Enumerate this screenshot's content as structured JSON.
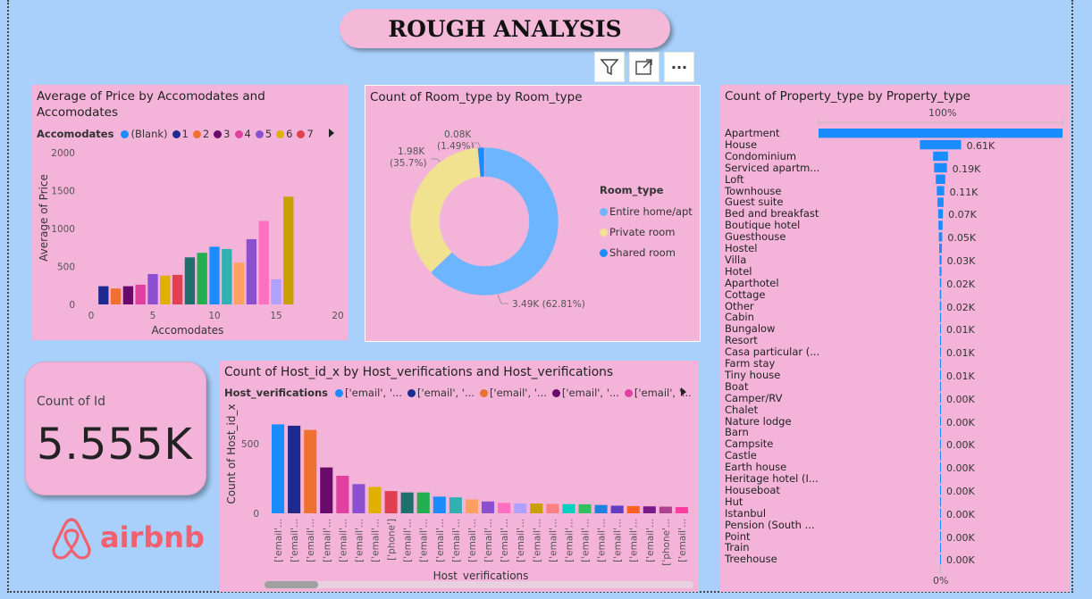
{
  "title": "ROUGH ANALYSIS",
  "toolbar": {
    "icons": [
      "filter-icon",
      "expand-icon",
      "more-options-icon"
    ],
    "more_label": "···"
  },
  "chart_price": {
    "title": "Average of Price by Accomodates and Accomodates",
    "legend_title": "Accomodates",
    "legend": [
      {
        "label": "(Blank)",
        "color": "#1a8cff"
      },
      {
        "label": "1",
        "color": "#1f2a8f"
      },
      {
        "label": "2",
        "color": "#f07030"
      },
      {
        "label": "3",
        "color": "#6a0a6a"
      },
      {
        "label": "4",
        "color": "#e040a0"
      },
      {
        "label": "5",
        "color": "#8a50d0"
      },
      {
        "label": "6",
        "color": "#e0b000"
      },
      {
        "label": "7",
        "color": "#e04050"
      }
    ]
  },
  "chart_room": {
    "title": "Count of Room_type by Room_type",
    "legend_title": "Room_type",
    "legend": [
      {
        "label": "Entire home/apt",
        "color": "#6db5ff"
      },
      {
        "label": "Private room",
        "color": "#f0e290"
      },
      {
        "label": "Shared room",
        "color": "#1a8cff"
      }
    ],
    "labels": {
      "shared_a": "0.08K",
      "shared_b": "(1.49%)",
      "private_a": "1.98K",
      "private_b": "(35.7%)",
      "entire": "3.49K (62.81%)"
    }
  },
  "kpi": {
    "label": "Count of Id",
    "value": "5.555K"
  },
  "logo": {
    "text": "airbnb",
    "icon": "airbnb-logo-icon"
  },
  "chart_host": {
    "title": "Count of Host_id_x by Host_verifications and Host_verifications",
    "legend_title": "Host_verifications",
    "legend": [
      {
        "label": "['email', '...",
        "color": "#1a8cff"
      },
      {
        "label": "['email', '...",
        "color": "#1f2a8f"
      },
      {
        "label": "['email', '...",
        "color": "#f07030"
      },
      {
        "label": "['email', '...",
        "color": "#6a0a6a"
      },
      {
        "label": "['email', '...",
        "color": "#e040a0"
      }
    ]
  },
  "chart_property": {
    "title": "Count of Property_type by Property_type",
    "top_label": "100%",
    "bottom_label": "0%"
  },
  "chart_data": [
    {
      "type": "bar",
      "title": "Average of Price by Accomodates and Accomodates",
      "xlabel": "Accomodates",
      "ylabel": "Average of Price",
      "xlim": [
        0,
        20
      ],
      "ylim": [
        0,
        2000
      ],
      "x_ticks": [
        0,
        5,
        10,
        15,
        20
      ],
      "y_ticks": [
        0,
        500,
        1000,
        1500,
        2000
      ],
      "x": [
        1,
        2,
        3,
        4,
        5,
        6,
        7,
        8,
        9,
        10,
        11,
        12,
        13,
        14,
        15,
        16
      ],
      "values": [
        240,
        210,
        240,
        260,
        400,
        380,
        390,
        620,
        680,
        760,
        730,
        550,
        860,
        1100,
        330,
        1420
      ],
      "colors": [
        "#1f2a8f",
        "#f07030",
        "#6a0a6a",
        "#e040a0",
        "#8a50d0",
        "#e0b000",
        "#e04050",
        "#1f6f6f",
        "#20b050",
        "#1a8cff",
        "#30b0b0",
        "#ffa060",
        "#8a50d0",
        "#ff70c0",
        "#b0a0ff",
        "#c8a000"
      ]
    },
    {
      "type": "pie",
      "title": "Count of Room_type by Room_type",
      "categories": [
        "Entire home/apt",
        "Private room",
        "Shared room"
      ],
      "values": [
        3490,
        1980,
        80
      ],
      "percent": [
        62.81,
        35.7,
        1.49
      ]
    },
    {
      "type": "bar",
      "title": "Count of Host_id_x by Host_verifications and Host_verifications",
      "xlabel": "Host_verifications",
      "ylabel": "Count of Host_id_x",
      "ylim": [
        0,
        700
      ],
      "y_ticks": [
        0,
        500
      ],
      "categories": [
        "['email'...",
        "['email'...",
        "['email'...",
        "['email'...",
        "['email'...",
        "['email'...",
        "['email'...",
        "['phone']",
        "['email'...",
        "['email'...",
        "['email'...",
        "['email'...",
        "['email'...",
        "['email'...",
        "['email'...",
        "['email'...",
        "['email'...",
        "['email'...",
        "['email'...",
        "['email'...",
        "['email'...",
        "['email'...",
        "['email'...",
        "['email'...",
        "['phone'...",
        "['email'..."
      ],
      "values": [
        640,
        630,
        600,
        330,
        270,
        210,
        190,
        160,
        150,
        150,
        120,
        115,
        100,
        85,
        75,
        72,
        70,
        68,
        66,
        65,
        60,
        55,
        52,
        50,
        48,
        45
      ],
      "colors": [
        "#1a8cff",
        "#1f2a8f",
        "#f07030",
        "#6a0a6a",
        "#e040a0",
        "#8a50d0",
        "#e0b000",
        "#e04050",
        "#1f6f6f",
        "#20b050",
        "#1a8cff",
        "#30b0b0",
        "#ffa060",
        "#8a50d0",
        "#ff70c0",
        "#b0a0ff",
        "#c8a000",
        "#ff8080",
        "#00d0c0",
        "#30c060",
        "#1f80e0",
        "#6040c0",
        "#ff6020",
        "#7a1a8a",
        "#b04090",
        "#ff40a0"
      ]
    },
    {
      "type": "bar",
      "orientation": "horizontal",
      "title": "Count of Property_type by Property_type",
      "categories": [
        "Apartment",
        "House",
        "Condominium",
        "Serviced apartm...",
        "Loft",
        "Townhouse",
        "Guest suite",
        "Bed and breakfast",
        "Boutique hotel",
        "Guesthouse",
        "Hostel",
        "Villa",
        "Hotel",
        "Aparthotel",
        "Cottage",
        "Other",
        "Cabin",
        "Bungalow",
        "Resort",
        "Casa particular (...",
        "Farm stay",
        "Tiny house",
        "Boat",
        "Camper/RV",
        "Chalet",
        "Nature lodge",
        "Barn",
        "Campsite",
        "Castle",
        "Earth house",
        "Heritage hotel (I...",
        "Houseboat",
        "Hut",
        "Istanbul",
        "Pension (South ...",
        "Point",
        "Train",
        "Treehouse"
      ],
      "values": [
        3610,
        610,
        220,
        190,
        140,
        110,
        90,
        70,
        60,
        50,
        40,
        30,
        28,
        20,
        20,
        20,
        15,
        10,
        10,
        10,
        8,
        8,
        5,
        4,
        4,
        3,
        3,
        2,
        2,
        2,
        2,
        2,
        1,
        1,
        1,
        1,
        1,
        1
      ],
      "value_labels": [
        "",
        "0.61K",
        "",
        "0.19K",
        "",
        "0.11K",
        "",
        "0.07K",
        "",
        "0.05K",
        "",
        "0.03K",
        "",
        "0.02K",
        "",
        "0.02K",
        "",
        "0.01K",
        "",
        "0.01K",
        "",
        "0.01K",
        "",
        "0.00K",
        "",
        "0.00K",
        "",
        "0.00K",
        "",
        "0.00K",
        "",
        "0.00K",
        "",
        "0.00K",
        "",
        "0.00K",
        "",
        "0.00K"
      ]
    }
  ]
}
